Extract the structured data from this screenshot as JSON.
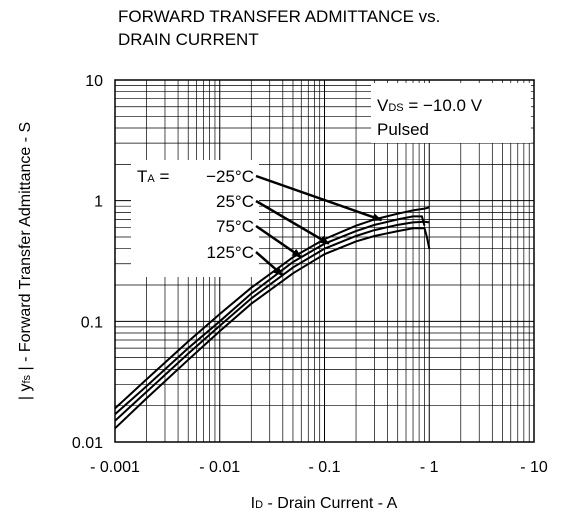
{
  "chart_data": {
    "type": "line",
    "title": [
      "FORWARD TRANSFER ADMITTANCE vs.",
      "DRAIN CURRENT"
    ],
    "xlabel": {
      "main": "I",
      "sub": "D",
      "rest": " - Drain Current - A"
    },
    "ylabel": {
      "pre": "| y",
      "sub": "fs",
      "rest": " | - Forward Transfer Admittance - S"
    },
    "x_scale": "log",
    "y_scale": "log",
    "xlim": [
      0.001,
      10
    ],
    "ylim": [
      0.01,
      10
    ],
    "x_ticks": [
      0.001,
      0.01,
      0.1,
      1,
      10
    ],
    "x_tick_labels": [
      "- 0.001",
      "- 0.01",
      "- 0.1",
      "- 1",
      "- 10"
    ],
    "y_ticks": [
      0.01,
      0.1,
      1,
      10
    ],
    "y_tick_labels": [
      "0.01",
      "0.1",
      "1",
      "10"
    ],
    "grid": true,
    "conditions": {
      "vds": {
        "main": "V",
        "sub": "DS",
        "rest": " = −10.0 V"
      },
      "mode": "Pulsed"
    },
    "legend_header": {
      "main": "T",
      "sub": "A",
      "rest": " = "
    },
    "series": [
      {
        "name": "−25°C",
        "x": [
          0.001,
          0.002,
          0.005,
          0.01,
          0.02,
          0.05,
          0.1,
          0.2,
          0.3,
          0.5,
          0.7,
          0.9,
          1.0
        ],
        "y": [
          0.019,
          0.033,
          0.068,
          0.115,
          0.19,
          0.34,
          0.48,
          0.62,
          0.7,
          0.78,
          0.83,
          0.86,
          0.88
        ]
      },
      {
        "name": "25°C",
        "x": [
          0.001,
          0.002,
          0.005,
          0.01,
          0.02,
          0.05,
          0.1,
          0.2,
          0.3,
          0.5,
          0.7,
          0.85,
          0.9
        ],
        "y": [
          0.017,
          0.029,
          0.06,
          0.1,
          0.17,
          0.31,
          0.44,
          0.56,
          0.63,
          0.7,
          0.74,
          0.74,
          0.62
        ]
      },
      {
        "name": "75°C",
        "x": [
          0.001,
          0.002,
          0.005,
          0.01,
          0.02,
          0.05,
          0.1,
          0.2,
          0.3,
          0.5,
          0.7,
          0.9,
          1.0
        ],
        "y": [
          0.015,
          0.026,
          0.054,
          0.092,
          0.155,
          0.28,
          0.4,
          0.51,
          0.57,
          0.63,
          0.66,
          0.67,
          0.66
        ]
      },
      {
        "name": "125°C",
        "x": [
          0.001,
          0.002,
          0.005,
          0.01,
          0.02,
          0.05,
          0.1,
          0.2,
          0.3,
          0.5,
          0.7,
          0.9,
          0.95,
          1.0
        ],
        "y": [
          0.013,
          0.023,
          0.048,
          0.083,
          0.14,
          0.25,
          0.36,
          0.46,
          0.51,
          0.56,
          0.59,
          0.59,
          0.5,
          0.4
        ]
      }
    ],
    "series_label_arrow_targets": [
      {
        "label": "−25°C",
        "x": 0.35,
        "y": 0.69
      },
      {
        "label": "25°C",
        "x": 0.11,
        "y": 0.44
      },
      {
        "label": "75°C",
        "x": 0.06,
        "y": 0.34
      },
      {
        "label": "125°C",
        "x": 0.04,
        "y": 0.24
      }
    ]
  }
}
